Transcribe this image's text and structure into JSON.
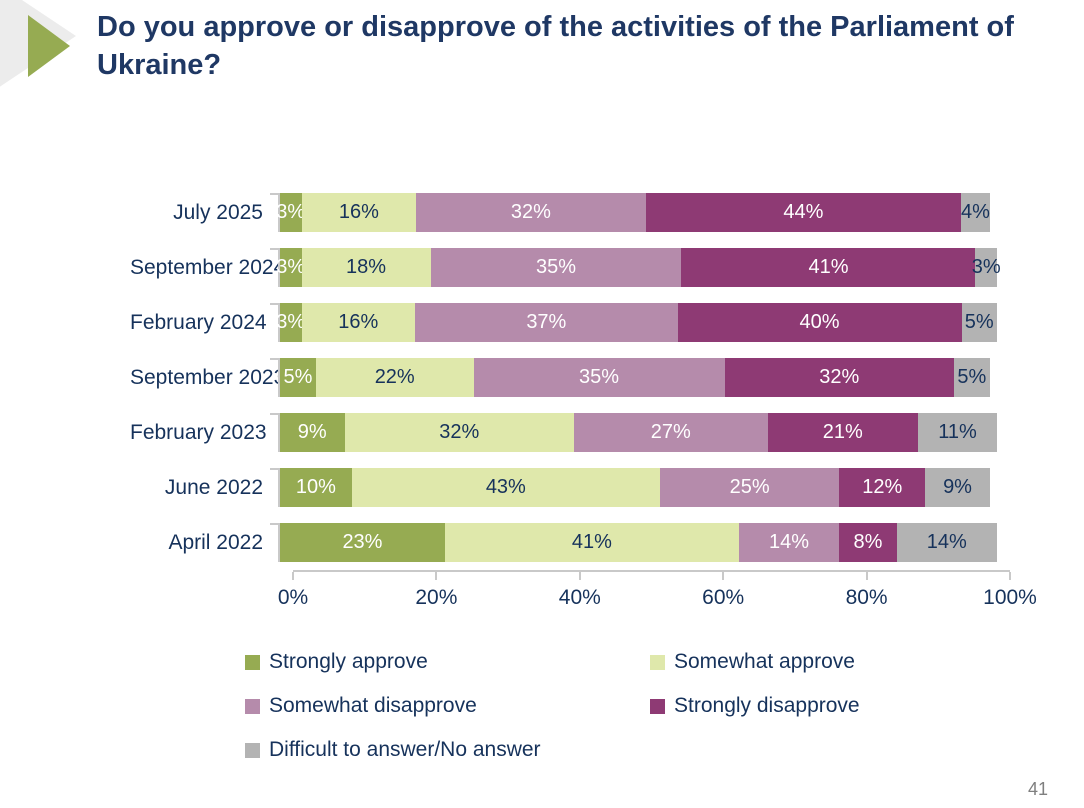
{
  "header": {
    "title": "Do you approve or disapprove of the activities of the Parliament of Ukraine?"
  },
  "page": {
    "number": "41"
  },
  "colors": {
    "strongly_approve": "#96ab52",
    "somewhat_approve": "#dfe8ab",
    "somewhat_disapprove": "#b58bab",
    "strongly_disapprove": "#8e3a74",
    "difficult_no_answer": "#b3b3b3",
    "title_text": "#1f3864",
    "axis_text": "#16325b",
    "axis_line": "#c9c9c9",
    "accent_triangle": "#96ab52"
  },
  "chart_data": {
    "type": "bar",
    "variant": "horizontal-stacked",
    "title": "Do you approve or disapprove of the activities of the Parliament of Ukraine?",
    "categories": [
      "July 2025",
      "September 2024",
      "February 2024",
      "September 2023",
      "February 2023",
      "June 2022",
      "April 2022"
    ],
    "series": [
      {
        "name": "Strongly approve",
        "color": "#96ab52",
        "label_color": "#ffffff",
        "values": [
          3,
          3,
          3,
          5,
          9,
          10,
          23
        ]
      },
      {
        "name": "Somewhat approve",
        "color": "#dfe8ab",
        "label_color": "#16325b",
        "values": [
          16,
          18,
          16,
          22,
          32,
          43,
          41
        ]
      },
      {
        "name": "Somewhat disapprove",
        "color": "#b58bab",
        "label_color": "#ffffff",
        "values": [
          32,
          35,
          37,
          35,
          27,
          25,
          14
        ]
      },
      {
        "name": "Strongly disapprove",
        "color": "#8e3a74",
        "label_color": "#ffffff",
        "values": [
          44,
          41,
          40,
          32,
          21,
          12,
          8
        ]
      },
      {
        "name": "Difficult to answer/No answer",
        "color": "#b3b3b3",
        "label_color": "#16325b",
        "values": [
          4,
          3,
          5,
          5,
          11,
          9,
          14
        ]
      }
    ],
    "value_suffix": "%",
    "xlabel": "",
    "ylabel": "",
    "xlim": [
      0,
      100
    ],
    "x_ticks": [
      {
        "value": 0,
        "label": "0%"
      },
      {
        "value": 20,
        "label": "20%"
      },
      {
        "value": 40,
        "label": "40%"
      },
      {
        "value": 60,
        "label": "60%"
      },
      {
        "value": 80,
        "label": "80%"
      },
      {
        "value": 100,
        "label": "100%"
      }
    ],
    "grid": false,
    "legend_position": "bottom"
  },
  "legend": {
    "items": [
      {
        "label": "Strongly approve",
        "color": "#96ab52"
      },
      {
        "label": "Somewhat approve",
        "color": "#dfe8ab"
      },
      {
        "label": "Somewhat disapprove",
        "color": "#b58bab"
      },
      {
        "label": "Strongly disapprove",
        "color": "#8e3a74"
      },
      {
        "label": "Difficult to answer/No answer",
        "color": "#b3b3b3"
      }
    ]
  }
}
